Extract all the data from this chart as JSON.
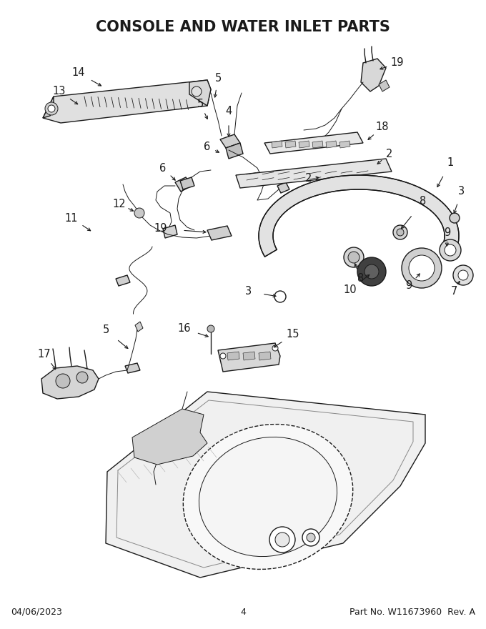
{
  "title": "CONSOLE AND WATER INLET PARTS",
  "title_fontsize": 15,
  "footer_left": "04/06/2023",
  "footer_center": "4",
  "footer_right": "Part No. W11673960  Rev. A",
  "footer_fontsize": 9,
  "bg_color": "#ffffff",
  "line_color": "#1a1a1a",
  "label_fontsize": 10.5,
  "gray_fill": "#d8d8d8",
  "gray_dark": "#b0b0b0",
  "gray_light": "#eeeeee"
}
